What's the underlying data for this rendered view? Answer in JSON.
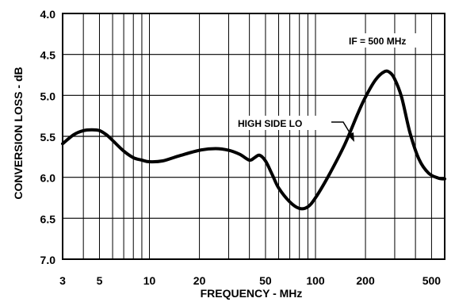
{
  "chart_data": {
    "type": "line",
    "xlabel": "FREQUENCY - MHz",
    "ylabel": "CONVERSION LOSS - dB",
    "xscale": "log",
    "xlim": [
      3,
      600
    ],
    "ylim": [
      4.0,
      7.0
    ],
    "y_inverted": true,
    "grid": true,
    "x_ticks": [
      3,
      5,
      10,
      20,
      50,
      100,
      200,
      500
    ],
    "x_tick_labels": [
      "3",
      "5",
      "10",
      "20",
      "50",
      "100",
      "200",
      "500"
    ],
    "y_ticks": [
      4.0,
      4.5,
      5.0,
      5.5,
      6.0,
      6.5,
      7.0
    ],
    "y_tick_labels": [
      "4.0",
      "4.5",
      "5.0",
      "5.5",
      "6.0",
      "6.5",
      "7.0"
    ],
    "annotations": [
      {
        "text": "IF = 500 MHz"
      },
      {
        "text": "HIGH SIDE LO"
      }
    ],
    "series": [
      {
        "name": "HIGH SIDE LO",
        "x": [
          3,
          3.5,
          4,
          4.5,
          5,
          5.5,
          6,
          7,
          8,
          9,
          10,
          12,
          15,
          20,
          25,
          30,
          35,
          40,
          43,
          46,
          50,
          55,
          60,
          70,
          80,
          90,
          100,
          120,
          150,
          180,
          200,
          230,
          260,
          280,
          300,
          330,
          370,
          420,
          480,
          550,
          600
        ],
        "y": [
          5.59,
          5.48,
          5.43,
          5.42,
          5.43,
          5.48,
          5.55,
          5.68,
          5.76,
          5.79,
          5.81,
          5.8,
          5.74,
          5.67,
          5.65,
          5.67,
          5.72,
          5.79,
          5.76,
          5.73,
          5.8,
          5.97,
          6.13,
          6.3,
          6.38,
          6.36,
          6.25,
          5.98,
          5.6,
          5.22,
          5.02,
          4.81,
          4.71,
          4.72,
          4.8,
          5.02,
          5.45,
          5.78,
          5.95,
          6.01,
          6.02
        ]
      }
    ]
  }
}
